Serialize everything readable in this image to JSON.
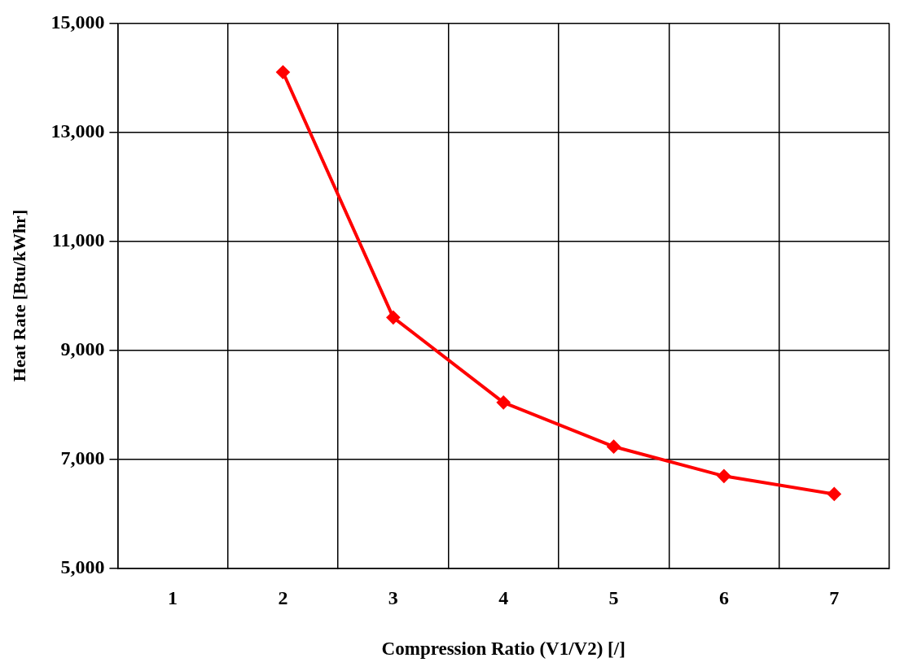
{
  "chart_data": {
    "type": "line",
    "xlabel": "Compression Ratio (V1/V2) [/]",
    "ylabel": "Heat Rate [Btu/kWhr]",
    "categories": [
      "1",
      "2",
      "3",
      "4",
      "5",
      "6",
      "7"
    ],
    "series": [
      {
        "color": "#ff0000",
        "values": [
          null,
          14100,
          9600,
          8040,
          7230,
          6690,
          6360
        ]
      }
    ],
    "ylim": [
      5000,
      15000
    ],
    "yticks": [
      {
        "value": 5000,
        "label": "5,000"
      },
      {
        "value": 7000,
        "label": "7,000"
      },
      {
        "value": 9000,
        "label": "9,000"
      },
      {
        "value": 11000,
        "label": "11,000"
      },
      {
        "value": 13000,
        "label": "13,000"
      },
      {
        "value": 15000,
        "label": "15,000"
      }
    ],
    "grid": true,
    "legend": false,
    "marker": "diamond",
    "line_style": "solid"
  }
}
